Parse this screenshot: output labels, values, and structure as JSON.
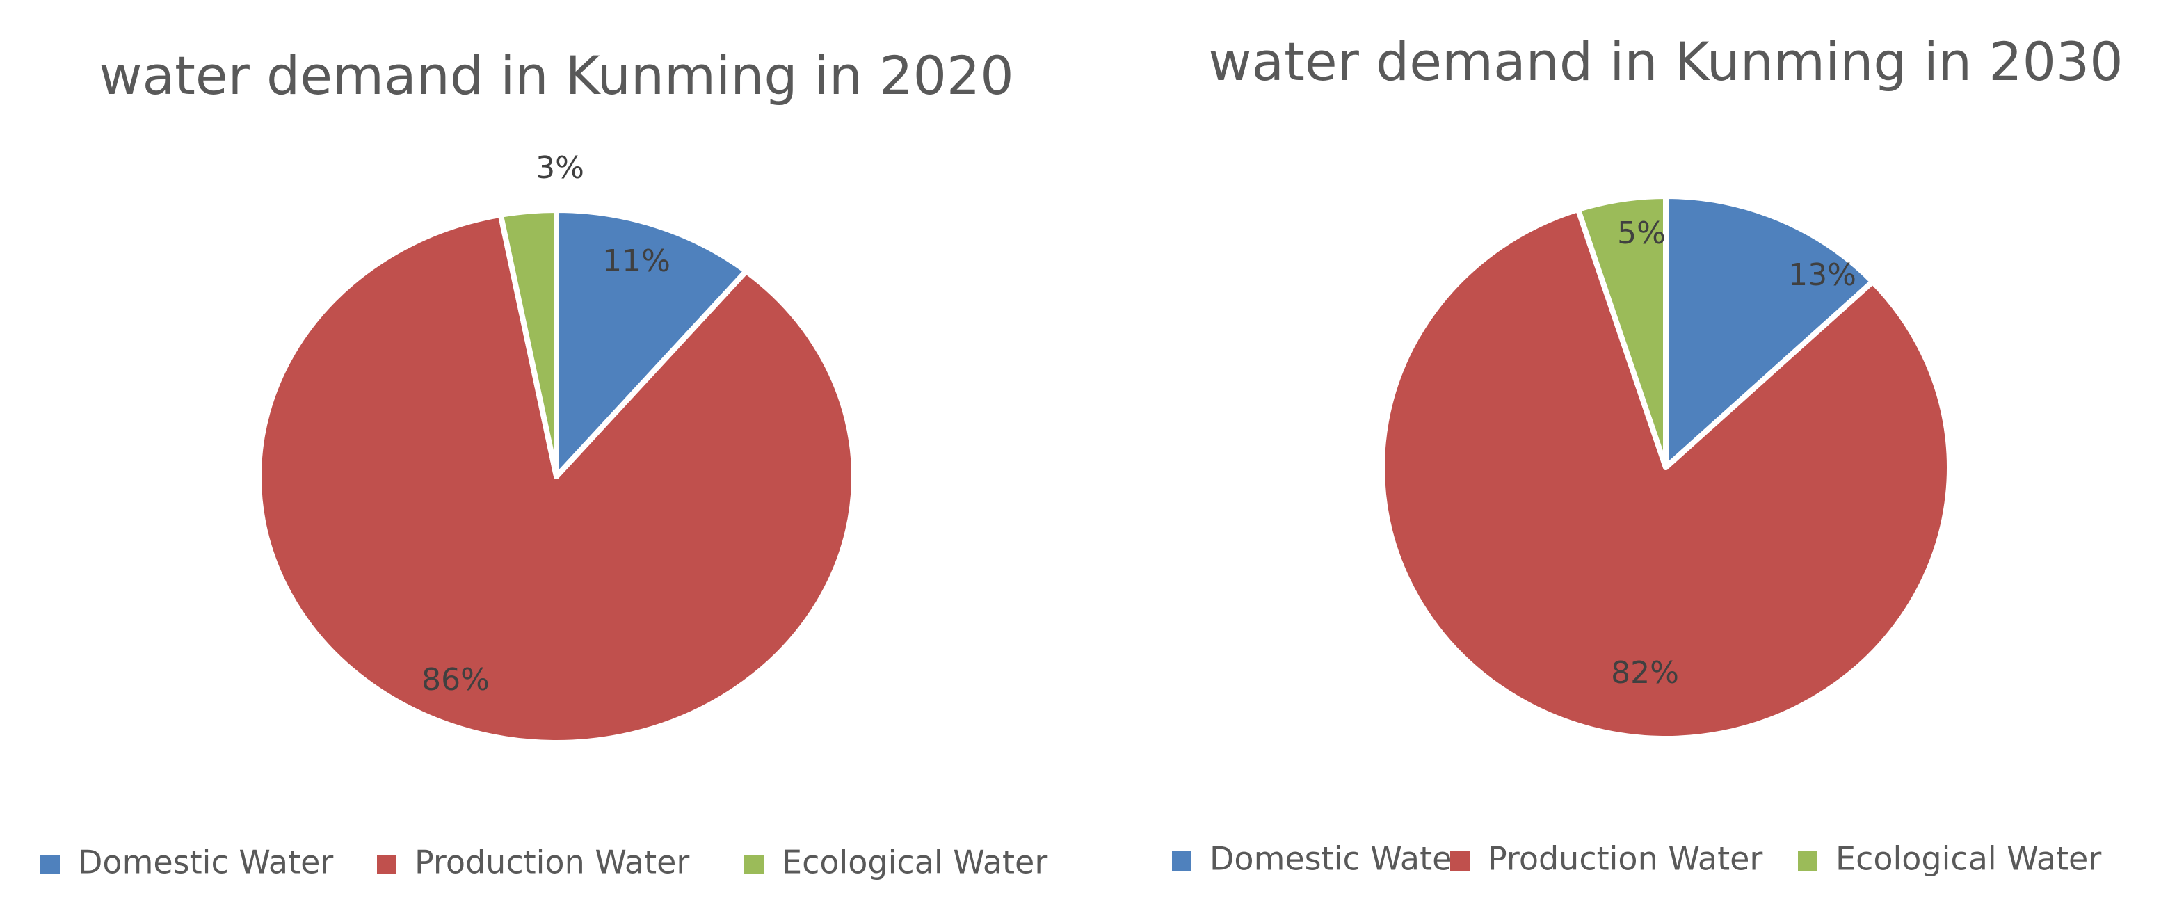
{
  "chart_data": [
    {
      "type": "pie",
      "title": "water demand in Kunming in 2020",
      "categories": [
        "Domestic Water",
        "Production Water",
        "Ecological Water"
      ],
      "values": [
        11,
        86,
        3
      ],
      "labels": [
        "11%",
        "86%",
        "3%"
      ],
      "colors": [
        "#4f81bd",
        "#c0504d",
        "#9bbb59"
      ],
      "legend_position": "bottom"
    },
    {
      "type": "pie",
      "title": "water demand in Kunming in 2030",
      "categories": [
        "Domestic Water",
        "Production Water",
        "Ecological Water"
      ],
      "values": [
        13,
        82,
        5
      ],
      "labels": [
        "13%",
        "82%",
        "5%"
      ],
      "colors": [
        "#4f81bd",
        "#c0504d",
        "#9bbb59"
      ],
      "legend_position": "bottom"
    }
  ]
}
